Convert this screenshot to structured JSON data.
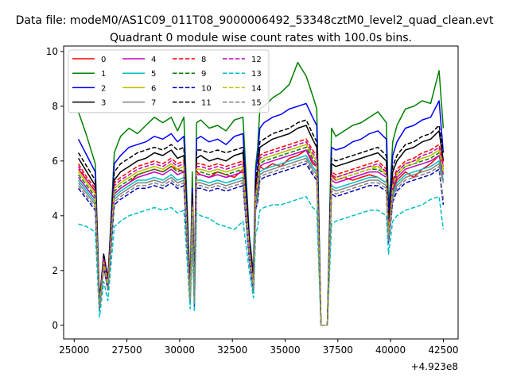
{
  "figure": {
    "suptitle": "Data file: modeM0/AS1C09_011T08_9000006492_53348cztM0_level2_quad_clean.evt"
  },
  "chart_data": {
    "type": "line",
    "title": "Quadrant 0 module wise count rates with 100.0s bins.",
    "xlabel": "",
    "ylabel": "",
    "x_offset_label": "+4.923e8",
    "xlim": [
      24500,
      43200
    ],
    "ylim": [
      -0.5,
      10.2
    ],
    "x_ticks": [
      25000,
      27500,
      30000,
      32500,
      35000,
      37500,
      40000,
      42500
    ],
    "x_tick_labels": [
      "25000",
      "27500",
      "30000",
      "32500",
      "35000",
      "37500",
      "40000",
      "42500"
    ],
    "y_ticks": [
      0,
      2,
      4,
      6,
      8,
      10
    ],
    "y_tick_labels": [
      "0",
      "2",
      "4",
      "6",
      "8",
      "10"
    ],
    "grid": false,
    "legend_placement": "top-left",
    "legend_columns": 4,
    "x": [
      25200,
      25600,
      26000,
      26200,
      26400,
      26600,
      26900,
      27200,
      27600,
      28000,
      28400,
      28800,
      29200,
      29600,
      29900,
      30200,
      30500,
      30600,
      30700,
      30800,
      31000,
      31400,
      31800,
      32200,
      32600,
      33000,
      33300,
      33500,
      33600,
      33700,
      33800,
      34000,
      34400,
      34800,
      35200,
      35600,
      36000,
      36300,
      36500,
      36700,
      36800,
      37000,
      37200,
      37400,
      37800,
      38200,
      38600,
      39000,
      39400,
      39800,
      39900,
      40000,
      40100,
      40300,
      40700,
      41100,
      41500,
      41900,
      42300,
      42500
    ],
    "series": [
      {
        "name": "0",
        "color": "#ff0000",
        "dash": "solid",
        "values": [
          5.7,
          5.3,
          4.9,
          0.8,
          2.4,
          1.5,
          4.8,
          5.0,
          5.2,
          5.5,
          5.6,
          5.7,
          5.6,
          5.8,
          5.7,
          5.6,
          1.1,
          4.2,
          0.9,
          5.6,
          5.5,
          5.4,
          5.6,
          5.5,
          5.4,
          5.7,
          2.8,
          1.4,
          4.5,
          5.0,
          5.8,
          5.7,
          5.9,
          5.8,
          6.1,
          6.2,
          6.4,
          5.9,
          5.8,
          0.0,
          0.0,
          0.0,
          5.5,
          5.3,
          5.4,
          5.3,
          5.4,
          5.5,
          5.4,
          5.2,
          3.4,
          4.1,
          4.9,
          5.3,
          5.6,
          5.4,
          5.7,
          5.9,
          6.2,
          5.8
        ]
      },
      {
        "name": "1",
        "color": "#008000",
        "dash": "solid",
        "values": [
          7.8,
          6.9,
          5.9,
          0.9,
          2.5,
          1.6,
          6.3,
          6.9,
          7.2,
          7.0,
          7.3,
          7.6,
          7.4,
          7.6,
          7.1,
          7.6,
          1.4,
          5.6,
          1.2,
          7.4,
          7.5,
          7.2,
          7.3,
          7.1,
          7.5,
          7.6,
          3.3,
          1.9,
          5.8,
          6.5,
          7.9,
          8.0,
          8.3,
          8.5,
          8.8,
          9.6,
          9.1,
          8.4,
          7.9,
          0.0,
          0.0,
          0.0,
          7.2,
          6.9,
          7.1,
          7.3,
          7.4,
          7.6,
          7.8,
          7.4,
          4.3,
          5.3,
          6.7,
          7.3,
          7.9,
          8.0,
          8.2,
          8.1,
          9.3,
          7.2
        ]
      },
      {
        "name": "2",
        "color": "#0000ff",
        "dash": "solid",
        "values": [
          6.8,
          6.2,
          5.6,
          0.9,
          2.6,
          1.7,
          5.9,
          6.2,
          6.5,
          6.6,
          6.7,
          6.9,
          6.8,
          7.0,
          6.7,
          6.9,
          1.3,
          5.0,
          1.1,
          6.8,
          6.9,
          6.7,
          6.8,
          6.6,
          6.9,
          7.0,
          3.2,
          1.8,
          5.6,
          6.2,
          7.2,
          7.4,
          7.6,
          7.7,
          7.9,
          8.0,
          8.1,
          7.6,
          7.3,
          0.0,
          0.0,
          0.0,
          6.5,
          6.4,
          6.5,
          6.7,
          6.8,
          7.0,
          7.1,
          6.8,
          4.0,
          5.0,
          6.2,
          6.7,
          7.2,
          7.3,
          7.5,
          7.6,
          8.2,
          6.3
        ]
      },
      {
        "name": "3",
        "color": "#000000",
        "dash": "solid",
        "values": [
          6.1,
          5.6,
          5.1,
          0.8,
          2.5,
          1.6,
          5.3,
          5.6,
          5.8,
          6.0,
          6.1,
          6.3,
          6.2,
          6.4,
          6.1,
          6.2,
          1.2,
          4.6,
          1.0,
          6.1,
          6.2,
          6.0,
          6.1,
          6.0,
          6.2,
          6.3,
          3.0,
          1.6,
          5.1,
          5.6,
          6.5,
          6.6,
          6.8,
          6.9,
          7.0,
          7.2,
          7.3,
          6.8,
          6.5,
          0.0,
          0.0,
          0.0,
          5.9,
          5.8,
          5.9,
          6.0,
          6.1,
          6.2,
          6.3,
          6.0,
          3.7,
          4.5,
          5.6,
          6.0,
          6.4,
          6.5,
          6.7,
          6.8,
          7.1,
          6.0
        ]
      },
      {
        "name": "4",
        "color": "#bf00bf",
        "dash": "solid",
        "values": [
          5.4,
          5.0,
          4.6,
          0.7,
          2.3,
          1.4,
          4.8,
          5.0,
          5.2,
          5.4,
          5.5,
          5.6,
          5.5,
          5.7,
          5.5,
          5.6,
          1.0,
          4.1,
          0.9,
          5.5,
          5.5,
          5.4,
          5.5,
          5.4,
          5.5,
          5.6,
          2.7,
          1.4,
          4.6,
          5.0,
          5.8,
          5.9,
          6.0,
          6.1,
          6.2,
          6.3,
          6.4,
          6.0,
          5.8,
          0.0,
          0.0,
          0.0,
          5.3,
          5.2,
          5.3,
          5.4,
          5.5,
          5.6,
          5.6,
          5.4,
          3.3,
          4.0,
          5.0,
          5.4,
          5.7,
          5.8,
          5.9,
          6.0,
          6.2,
          5.5
        ]
      },
      {
        "name": "5",
        "color": "#00bfbf",
        "dash": "solid",
        "values": [
          5.3,
          4.9,
          4.5,
          0.6,
          2.2,
          1.3,
          4.7,
          4.9,
          5.1,
          5.3,
          5.3,
          5.4,
          5.3,
          5.5,
          5.3,
          5.4,
          0.9,
          4.0,
          0.8,
          5.3,
          5.3,
          5.2,
          5.3,
          5.2,
          5.3,
          5.4,
          2.6,
          1.3,
          4.4,
          4.8,
          5.6,
          5.7,
          5.8,
          5.9,
          6.0,
          6.1,
          6.2,
          5.8,
          5.6,
          0.0,
          0.0,
          0.0,
          5.1,
          5.0,
          5.1,
          5.2,
          5.3,
          5.4,
          5.4,
          5.2,
          3.2,
          3.9,
          4.8,
          5.2,
          5.5,
          5.6,
          5.7,
          5.8,
          6.0,
          5.3
        ]
      },
      {
        "name": "6",
        "color": "#bfbf00",
        "dash": "solid",
        "values": [
          5.6,
          5.2,
          4.8,
          0.7,
          2.4,
          1.5,
          5.0,
          5.2,
          5.4,
          5.6,
          5.7,
          5.8,
          5.7,
          5.9,
          5.7,
          5.8,
          1.1,
          4.3,
          0.9,
          5.7,
          5.7,
          5.6,
          5.7,
          5.6,
          5.7,
          5.8,
          2.8,
          1.5,
          4.7,
          5.2,
          6.0,
          6.1,
          6.2,
          6.3,
          6.4,
          6.5,
          6.6,
          6.2,
          6.0,
          0.0,
          0.0,
          0.0,
          5.5,
          5.4,
          5.5,
          5.6,
          5.7,
          5.8,
          5.8,
          5.6,
          3.4,
          4.2,
          5.2,
          5.6,
          5.9,
          6.0,
          6.1,
          6.2,
          6.4,
          5.7
        ]
      },
      {
        "name": "7",
        "color": "#808080",
        "dash": "solid",
        "values": [
          5.2,
          4.8,
          4.4,
          0.6,
          2.1,
          1.3,
          4.6,
          4.8,
          5.0,
          5.2,
          5.2,
          5.3,
          5.2,
          5.4,
          5.2,
          5.3,
          0.9,
          3.9,
          0.8,
          5.2,
          5.2,
          5.1,
          5.2,
          5.1,
          5.2,
          5.3,
          2.5,
          1.3,
          4.3,
          4.7,
          5.5,
          5.6,
          5.7,
          5.8,
          5.9,
          6.0,
          6.1,
          5.7,
          5.5,
          0.0,
          0.0,
          0.0,
          5.0,
          4.9,
          5.0,
          5.1,
          5.2,
          5.3,
          5.3,
          5.1,
          3.1,
          3.8,
          4.7,
          5.1,
          5.4,
          5.5,
          5.6,
          5.7,
          5.9,
          5.2
        ]
      },
      {
        "name": "8",
        "color": "#ff0000",
        "dash": "dashed",
        "values": [
          5.9,
          5.4,
          5.0,
          0.8,
          2.5,
          1.6,
          5.2,
          5.4,
          5.6,
          5.8,
          5.9,
          6.0,
          5.9,
          6.1,
          5.9,
          6.0,
          1.1,
          4.4,
          1.0,
          5.9,
          5.9,
          5.8,
          5.9,
          5.8,
          5.9,
          6.0,
          2.9,
          1.5,
          4.9,
          5.3,
          6.2,
          6.3,
          6.4,
          6.5,
          6.6,
          6.7,
          6.8,
          6.4,
          6.2,
          0.0,
          0.0,
          0.0,
          5.6,
          5.5,
          5.6,
          5.7,
          5.8,
          5.9,
          6.0,
          5.7,
          3.5,
          4.3,
          5.3,
          5.7,
          6.0,
          6.1,
          6.3,
          6.4,
          6.6,
          5.9
        ]
      },
      {
        "name": "9",
        "color": "#008000",
        "dash": "dashed",
        "values": [
          5.5,
          5.1,
          4.7,
          0.7,
          2.3,
          1.4,
          4.9,
          5.1,
          5.3,
          5.5,
          5.6,
          5.7,
          5.6,
          5.8,
          5.6,
          5.7,
          1.0,
          4.2,
          0.9,
          5.6,
          5.6,
          5.5,
          5.6,
          5.5,
          5.6,
          5.7,
          2.7,
          1.4,
          4.6,
          5.1,
          5.9,
          6.0,
          6.1,
          6.2,
          6.3,
          6.4,
          6.5,
          6.1,
          5.9,
          0.0,
          0.0,
          0.0,
          5.4,
          5.3,
          5.4,
          5.5,
          5.6,
          5.7,
          5.7,
          5.5,
          3.3,
          4.1,
          5.1,
          5.5,
          5.8,
          5.9,
          6.0,
          6.1,
          6.3,
          5.6
        ]
      },
      {
        "name": "10",
        "color": "#0000bf",
        "dash": "dashed",
        "values": [
          5.0,
          4.6,
          4.2,
          0.6,
          2.1,
          1.3,
          4.4,
          4.6,
          4.8,
          5.0,
          5.0,
          5.1,
          5.0,
          5.2,
          5.0,
          5.1,
          0.9,
          3.8,
          0.7,
          5.0,
          5.0,
          4.9,
          5.0,
          4.9,
          5.0,
          5.1,
          2.4,
          1.2,
          4.2,
          4.5,
          5.3,
          5.4,
          5.5,
          5.6,
          5.7,
          5.8,
          5.9,
          5.5,
          5.3,
          0.0,
          0.0,
          0.0,
          4.8,
          4.7,
          4.8,
          4.9,
          5.0,
          5.1,
          5.1,
          4.9,
          3.0,
          3.7,
          4.5,
          4.9,
          5.2,
          5.3,
          5.4,
          5.5,
          5.7,
          4.4
        ]
      },
      {
        "name": "11",
        "color": "#000000",
        "dash": "dashed",
        "values": [
          6.3,
          5.8,
          5.3,
          0.8,
          2.6,
          1.7,
          5.6,
          5.9,
          6.1,
          6.3,
          6.4,
          6.5,
          6.4,
          6.6,
          6.4,
          6.5,
          1.2,
          4.8,
          1.0,
          6.4,
          6.4,
          6.3,
          6.4,
          6.3,
          6.4,
          6.5,
          3.1,
          1.7,
          5.3,
          5.8,
          6.7,
          6.8,
          7.0,
          7.1,
          7.2,
          7.4,
          7.5,
          7.0,
          6.7,
          0.0,
          0.0,
          0.0,
          6.1,
          6.0,
          6.1,
          6.2,
          6.3,
          6.4,
          6.5,
          6.2,
          3.8,
          4.6,
          5.8,
          6.2,
          6.6,
          6.7,
          6.9,
          7.0,
          7.3,
          6.3
        ]
      },
      {
        "name": "12",
        "color": "#bf00bf",
        "dash": "dashed",
        "values": [
          5.8,
          5.3,
          4.9,
          0.7,
          2.4,
          1.5,
          5.1,
          5.3,
          5.5,
          5.7,
          5.8,
          5.9,
          5.8,
          6.0,
          5.8,
          5.9,
          1.1,
          4.4,
          0.9,
          5.8,
          5.8,
          5.7,
          5.8,
          5.7,
          5.8,
          5.9,
          2.8,
          1.5,
          4.8,
          5.3,
          6.1,
          6.2,
          6.3,
          6.4,
          6.5,
          6.6,
          6.7,
          6.3,
          6.1,
          0.0,
          0.0,
          0.0,
          5.5,
          5.4,
          5.5,
          5.6,
          5.7,
          5.8,
          5.9,
          5.6,
          3.4,
          4.2,
          5.2,
          5.6,
          5.9,
          6.0,
          6.2,
          6.3,
          6.5,
          5.8
        ]
      },
      {
        "name": "13",
        "color": "#00bfbf",
        "dash": "dashed",
        "values": [
          3.7,
          3.6,
          3.4,
          0.3,
          1.6,
          0.9,
          3.6,
          3.8,
          4.0,
          4.1,
          4.2,
          4.3,
          4.2,
          4.3,
          4.1,
          4.2,
          0.6,
          3.0,
          0.5,
          4.1,
          4.0,
          3.9,
          3.7,
          3.6,
          3.5,
          3.8,
          2.0,
          1.0,
          3.3,
          3.6,
          4.2,
          4.3,
          4.4,
          4.4,
          4.5,
          4.6,
          4.7,
          4.3,
          4.2,
          0.0,
          0.0,
          0.0,
          3.7,
          3.8,
          3.9,
          4.0,
          4.1,
          4.2,
          4.2,
          4.0,
          2.6,
          3.2,
          3.8,
          4.0,
          4.2,
          4.3,
          4.4,
          4.6,
          4.7,
          3.5
        ]
      },
      {
        "name": "14",
        "color": "#bfbf00",
        "dash": "dashed",
        "values": [
          5.6,
          5.2,
          4.8,
          0.7,
          2.3,
          1.5,
          5.0,
          5.2,
          5.4,
          5.6,
          5.7,
          5.8,
          5.7,
          5.9,
          5.7,
          5.8,
          1.0,
          4.3,
          0.9,
          5.7,
          5.7,
          5.6,
          5.7,
          5.6,
          5.7,
          5.8,
          2.8,
          1.4,
          4.7,
          5.2,
          6.0,
          6.1,
          6.2,
          6.3,
          6.4,
          6.5,
          6.6,
          6.2,
          6.0,
          0.0,
          0.0,
          0.0,
          5.4,
          5.3,
          5.4,
          5.5,
          5.6,
          5.7,
          5.8,
          5.5,
          3.3,
          4.1,
          5.1,
          5.5,
          5.8,
          5.9,
          6.1,
          6.2,
          6.4,
          5.6
        ]
      },
      {
        "name": "15",
        "color": "#808080",
        "dash": "dashed",
        "values": [
          5.1,
          4.7,
          4.3,
          0.6,
          2.1,
          1.3,
          4.5,
          4.7,
          4.9,
          5.1,
          5.1,
          5.2,
          5.1,
          5.3,
          5.1,
          5.2,
          0.9,
          3.9,
          0.8,
          5.1,
          5.1,
          5.0,
          5.1,
          5.0,
          5.1,
          5.2,
          2.5,
          1.3,
          4.2,
          4.6,
          5.4,
          5.5,
          5.6,
          5.7,
          5.8,
          5.9,
          6.0,
          5.6,
          5.4,
          0.0,
          0.0,
          0.0,
          4.9,
          4.8,
          4.9,
          5.0,
          5.1,
          5.2,
          5.2,
          5.0,
          3.1,
          3.8,
          4.6,
          5.0,
          5.3,
          5.4,
          5.5,
          5.6,
          5.8,
          4.6
        ]
      }
    ]
  }
}
